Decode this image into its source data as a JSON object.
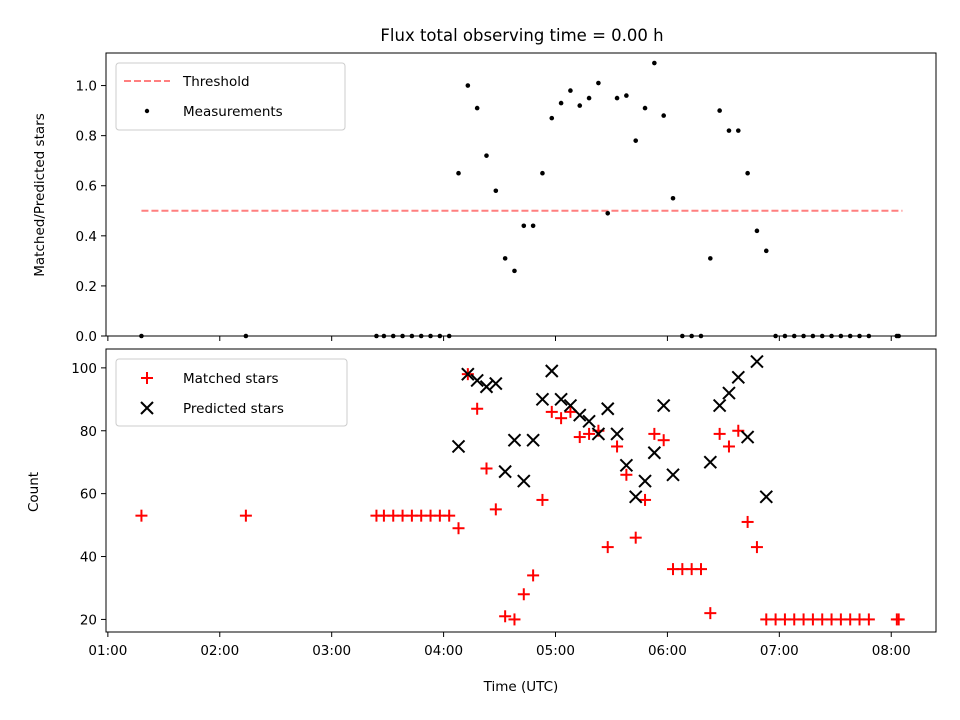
{
  "chart_data": [
    {
      "type": "scatter",
      "title": "Flux total observing time = 0.00 h",
      "xlabel": "",
      "ylabel": "Matched/Predicted stars",
      "xlim": [
        "00:59",
        "08:24"
      ],
      "ylim": [
        0,
        1.13
      ],
      "xticks": [
        "01:00",
        "02:00",
        "03:00",
        "04:00",
        "05:00",
        "06:00",
        "07:00",
        "08:00"
      ],
      "yticks": [
        "0.0",
        "0.2",
        "0.4",
        "0.6",
        "0.8",
        "1.0"
      ],
      "legend_position": "top-left",
      "threshold": {
        "name": "Threshold",
        "value": 0.5,
        "x_start": "01:18",
        "x_end": "08:06",
        "color": "#ff7f7f",
        "style": "dashed"
      },
      "series": [
        {
          "name": "Measurements",
          "marker": "dot",
          "color": "#000000",
          "points": [
            [
              "01:18",
              0.0
            ],
            [
              "02:14",
              0.0
            ],
            [
              "03:24",
              0.0
            ],
            [
              "03:28",
              0.0
            ],
            [
              "03:33",
              0.0
            ],
            [
              "03:38",
              0.0
            ],
            [
              "03:43",
              0.0
            ],
            [
              "03:48",
              0.0
            ],
            [
              "03:53",
              0.0
            ],
            [
              "03:58",
              0.0
            ],
            [
              "04:03",
              0.0
            ],
            [
              "04:08",
              0.65
            ],
            [
              "04:13",
              1.0
            ],
            [
              "04:18",
              0.91
            ],
            [
              "04:23",
              0.72
            ],
            [
              "04:28",
              0.58
            ],
            [
              "04:33",
              0.31
            ],
            [
              "04:38",
              0.26
            ],
            [
              "04:43",
              0.44
            ],
            [
              "04:48",
              0.44
            ],
            [
              "04:53",
              0.65
            ],
            [
              "04:58",
              0.87
            ],
            [
              "05:03",
              0.93
            ],
            [
              "05:08",
              0.98
            ],
            [
              "05:13",
              0.92
            ],
            [
              "05:18",
              0.95
            ],
            [
              "05:23",
              1.01
            ],
            [
              "05:28",
              0.49
            ],
            [
              "05:33",
              0.95
            ],
            [
              "05:38",
              0.96
            ],
            [
              "05:43",
              0.78
            ],
            [
              "05:48",
              0.91
            ],
            [
              "05:53",
              1.09
            ],
            [
              "05:58",
              0.88
            ],
            [
              "06:03",
              0.55
            ],
            [
              "06:08",
              0.0
            ],
            [
              "06:13",
              0.0
            ],
            [
              "06:18",
              0.0
            ],
            [
              "06:23",
              0.31
            ],
            [
              "06:28",
              0.9
            ],
            [
              "06:33",
              0.82
            ],
            [
              "06:38",
              0.82
            ],
            [
              "06:43",
              0.65
            ],
            [
              "06:48",
              0.42
            ],
            [
              "06:53",
              0.34
            ],
            [
              "06:58",
              0.0
            ],
            [
              "07:03",
              0.0
            ],
            [
              "07:08",
              0.0
            ],
            [
              "07:13",
              0.0
            ],
            [
              "07:18",
              0.0
            ],
            [
              "07:23",
              0.0
            ],
            [
              "07:28",
              0.0
            ],
            [
              "07:33",
              0.0
            ],
            [
              "07:38",
              0.0
            ],
            [
              "07:43",
              0.0
            ],
            [
              "07:48",
              0.0
            ],
            [
              "08:03",
              0.0
            ],
            [
              "08:04",
              0.0
            ]
          ]
        }
      ]
    },
    {
      "type": "scatter",
      "title": "",
      "xlabel": "Time (UTC)",
      "ylabel": "Count",
      "xlim": [
        "00:59",
        "08:24"
      ],
      "ylim": [
        16,
        106
      ],
      "xticks": [
        "01:00",
        "02:00",
        "03:00",
        "04:00",
        "05:00",
        "06:00",
        "07:00",
        "08:00"
      ],
      "yticks": [
        "20",
        "40",
        "60",
        "80",
        "100"
      ],
      "legend_position": "top-left",
      "series": [
        {
          "name": "Matched stars",
          "marker": "plus",
          "color": "#ff0000",
          "points": [
            [
              "01:18",
              53
            ],
            [
              "02:14",
              53
            ],
            [
              "03:24",
              53
            ],
            [
              "03:28",
              53
            ],
            [
              "03:33",
              53
            ],
            [
              "03:38",
              53
            ],
            [
              "03:43",
              53
            ],
            [
              "03:48",
              53
            ],
            [
              "03:53",
              53
            ],
            [
              "03:58",
              53
            ],
            [
              "04:03",
              53
            ],
            [
              "04:08",
              49
            ],
            [
              "04:13",
              98
            ],
            [
              "04:18",
              87
            ],
            [
              "04:23",
              68
            ],
            [
              "04:28",
              55
            ],
            [
              "04:33",
              21
            ],
            [
              "04:38",
              20
            ],
            [
              "04:43",
              28
            ],
            [
              "04:48",
              34
            ],
            [
              "04:53",
              58
            ],
            [
              "04:58",
              86
            ],
            [
              "05:03",
              84
            ],
            [
              "05:08",
              86
            ],
            [
              "05:13",
              78
            ],
            [
              "05:18",
              79
            ],
            [
              "05:23",
              80
            ],
            [
              "05:28",
              43
            ],
            [
              "05:33",
              75
            ],
            [
              "05:38",
              66
            ],
            [
              "05:43",
              46
            ],
            [
              "05:48",
              58
            ],
            [
              "05:53",
              79
            ],
            [
              "05:58",
              77
            ],
            [
              "06:03",
              36
            ],
            [
              "06:08",
              36
            ],
            [
              "06:13",
              36
            ],
            [
              "06:18",
              36
            ],
            [
              "06:23",
              22
            ],
            [
              "06:28",
              79
            ],
            [
              "06:33",
              75
            ],
            [
              "06:38",
              80
            ],
            [
              "06:43",
              51
            ],
            [
              "06:48",
              43
            ],
            [
              "06:53",
              20
            ],
            [
              "06:58",
              20
            ],
            [
              "07:03",
              20
            ],
            [
              "07:08",
              20
            ],
            [
              "07:13",
              20
            ],
            [
              "07:18",
              20
            ],
            [
              "07:23",
              20
            ],
            [
              "07:28",
              20
            ],
            [
              "07:33",
              20
            ],
            [
              "07:38",
              20
            ],
            [
              "07:43",
              20
            ],
            [
              "07:48",
              20
            ],
            [
              "08:03",
              20
            ],
            [
              "08:04",
              20
            ]
          ]
        },
        {
          "name": "Predicted stars",
          "marker": "x",
          "color": "#000000",
          "points": [
            [
              "04:08",
              75
            ],
            [
              "04:13",
              98
            ],
            [
              "04:18",
              96
            ],
            [
              "04:23",
              94
            ],
            [
              "04:28",
              95
            ],
            [
              "04:33",
              67
            ],
            [
              "04:38",
              77
            ],
            [
              "04:43",
              64
            ],
            [
              "04:48",
              77
            ],
            [
              "04:53",
              90
            ],
            [
              "04:58",
              99
            ],
            [
              "05:03",
              90
            ],
            [
              "05:08",
              88
            ],
            [
              "05:13",
              85
            ],
            [
              "05:18",
              83
            ],
            [
              "05:23",
              79
            ],
            [
              "05:28",
              87
            ],
            [
              "05:33",
              79
            ],
            [
              "05:38",
              69
            ],
            [
              "05:43",
              59
            ],
            [
              "05:48",
              64
            ],
            [
              "05:53",
              73
            ],
            [
              "05:58",
              88
            ],
            [
              "06:03",
              66
            ],
            [
              "06:23",
              70
            ],
            [
              "06:28",
              88
            ],
            [
              "06:33",
              92
            ],
            [
              "06:38",
              97
            ],
            [
              "06:43",
              78
            ],
            [
              "06:48",
              102
            ],
            [
              "06:53",
              59
            ]
          ]
        }
      ]
    }
  ]
}
